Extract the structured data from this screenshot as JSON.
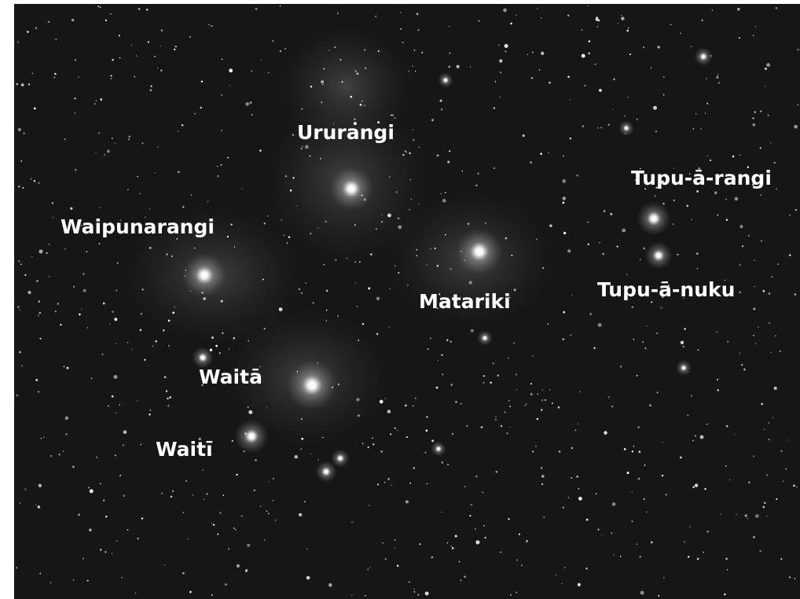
{
  "labels": [
    "Ururangi",
    "Waipunarangi",
    "Matariki",
    "Tupu-ā-rangi",
    "Tupu-ā-nuku",
    "Waitā",
    "Waitī"
  ]
}
